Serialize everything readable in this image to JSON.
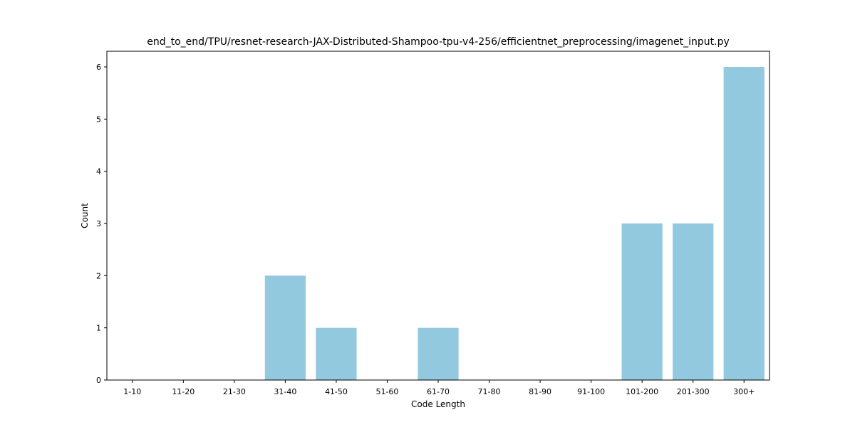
{
  "chart_data": {
    "type": "bar",
    "title": "end_to_end/TPU/resnet-research-JAX-Distributed-Shampoo-tpu-v4-256/efficientnet_preprocessing/imagenet_input.py",
    "xlabel": "Code Length",
    "ylabel": "Count",
    "categories": [
      "1-10",
      "11-20",
      "21-30",
      "31-40",
      "41-50",
      "51-60",
      "61-70",
      "71-80",
      "81-90",
      "91-100",
      "101-200",
      "201-300",
      "300+"
    ],
    "values": [
      0,
      0,
      0,
      2,
      1,
      0,
      1,
      0,
      0,
      0,
      3,
      3,
      6
    ],
    "ylim": [
      0,
      6.3
    ],
    "yticks": [
      0,
      1,
      2,
      3,
      4,
      5,
      6
    ],
    "grid": false,
    "bar_color": "#92c9df"
  }
}
